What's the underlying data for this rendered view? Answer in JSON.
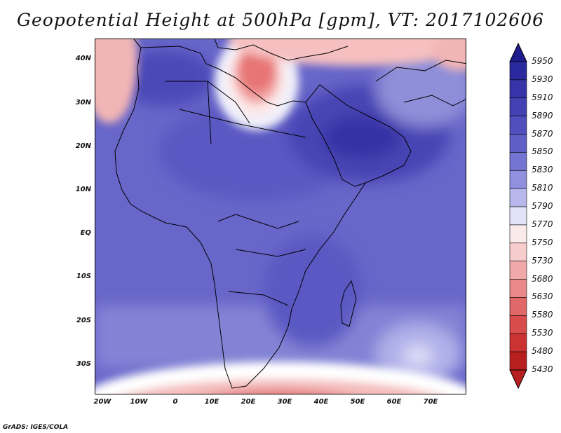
{
  "title": "Geopotential Height at 500hPa [gpm], VT: 2017102606",
  "credit": "GrADS: IGES/COLA",
  "map": {
    "lat_labels": [
      "40N",
      "30N",
      "20N",
      "10N",
      "EQ",
      "10S",
      "20S",
      "30S"
    ],
    "lon_labels": [
      "20W",
      "10W",
      "0",
      "10E",
      "20E",
      "30E",
      "40E",
      "50E",
      "60E",
      "70E"
    ]
  },
  "colorbar": {
    "levels": [
      "5950",
      "5930",
      "5910",
      "5890",
      "5870",
      "5850",
      "5830",
      "5810",
      "5790",
      "5770",
      "5750",
      "5730",
      "5680",
      "5630",
      "5580",
      "5530",
      "5480",
      "5430"
    ],
    "colors": [
      "#1e1b8c",
      "#2a2a9e",
      "#3634a8",
      "#4341b3",
      "#514fbd",
      "#5f5ec7",
      "#7474d2",
      "#9090de",
      "#b7b7ec",
      "#e2e2f8",
      "#fbeaea",
      "#f7cccc",
      "#f0a8a8",
      "#e88888",
      "#e06868",
      "#d84c4c",
      "#cc3232",
      "#b82020"
    ]
  }
}
